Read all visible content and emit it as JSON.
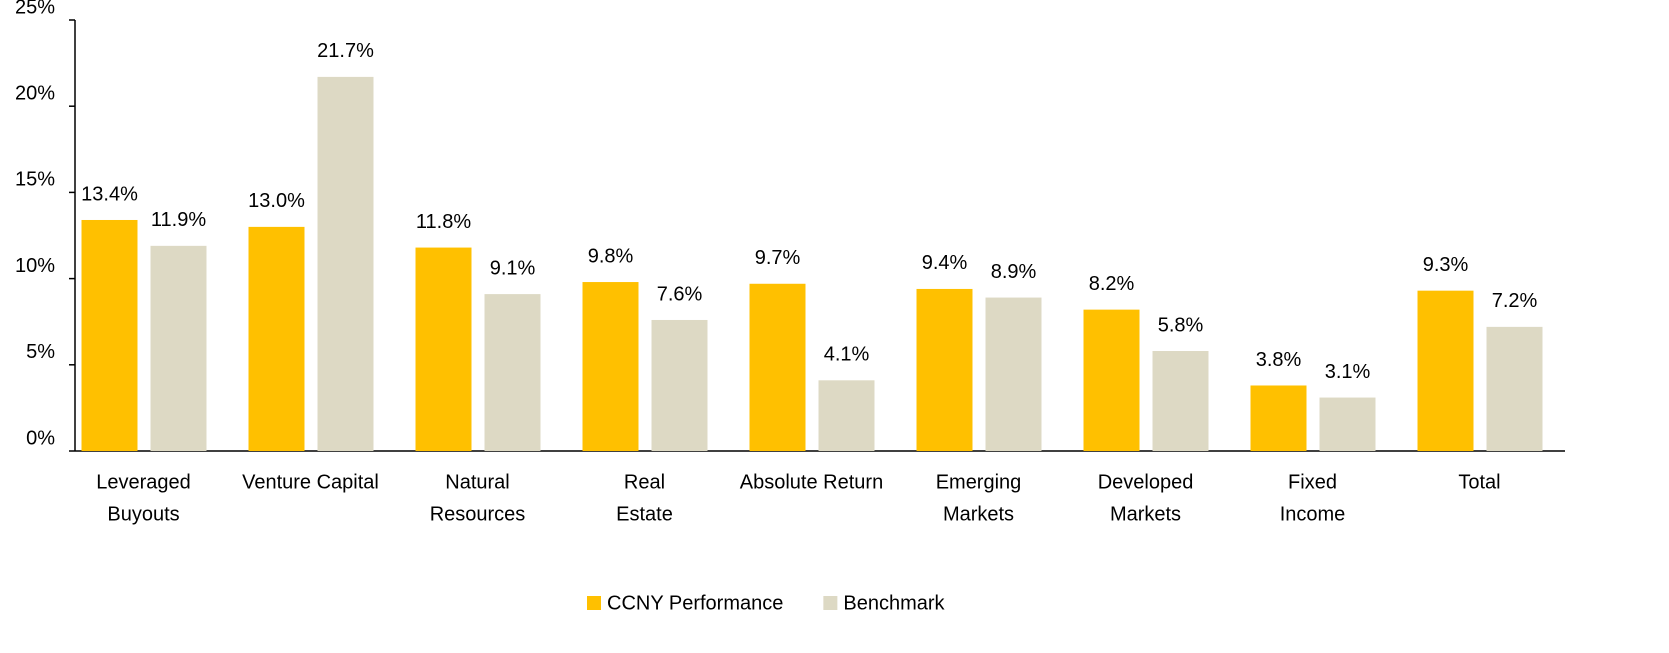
{
  "chart_data": {
    "type": "bar",
    "categories": [
      [
        "Leveraged",
        "Buyouts"
      ],
      [
        "Venture Capital"
      ],
      [
        "Natural",
        "Resources"
      ],
      [
        "Real",
        "Estate"
      ],
      [
        "Absolute Return"
      ],
      [
        "Emerging",
        "Markets"
      ],
      [
        "Developed",
        "Markets"
      ],
      [
        "Fixed",
        "Income"
      ],
      [
        "Total"
      ]
    ],
    "series": [
      {
        "name": "CCNY Performance",
        "color": "#FFC000",
        "values": [
          13.4,
          13.0,
          11.8,
          9.8,
          9.7,
          9.4,
          8.2,
          3.8,
          9.3
        ],
        "value_labels": [
          "13.4%",
          "13.0%",
          "11.8%",
          "9.8%",
          "9.7%",
          "9.4%",
          "8.2%",
          "3.8%",
          "9.3%"
        ]
      },
      {
        "name": "Benchmark",
        "color": "#DDD9C4",
        "values": [
          11.9,
          21.7,
          9.1,
          7.6,
          4.1,
          8.9,
          5.8,
          3.1,
          7.2
        ],
        "value_labels": [
          "11.9%",
          "21.7%",
          "9.1%",
          "7.6%",
          "4.1%",
          "8.9%",
          "5.8%",
          "3.1%",
          "7.2%"
        ]
      }
    ],
    "ylim": [
      0,
      25
    ],
    "yticks": [
      {
        "value": 0,
        "label": "0%"
      },
      {
        "value": 5,
        "label": "5%"
      },
      {
        "value": 10,
        "label": "10%"
      },
      {
        "value": 15,
        "label": "15%"
      },
      {
        "value": 20,
        "label": "20%"
      },
      {
        "value": 25,
        "label": "25%"
      }
    ],
    "grid": false,
    "legend": "bottom"
  }
}
